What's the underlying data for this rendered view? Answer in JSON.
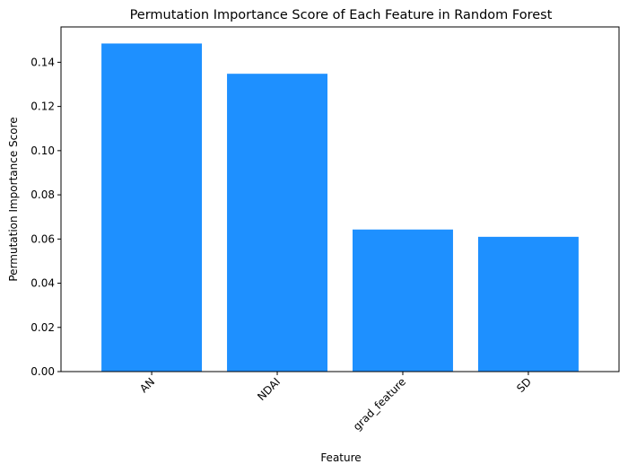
{
  "colors": {
    "bar": "#1e90ff",
    "axis": "#000000",
    "background": "#ffffff"
  },
  "chart_data": {
    "type": "bar",
    "title": "Permutation Importance Score of Each Feature in Random Forest",
    "xlabel": "Feature",
    "ylabel": "Permutation Importance Score",
    "categories": [
      "AN",
      "NDAI",
      "grad_feature",
      "SD"
    ],
    "values": [
      0.1485,
      0.1348,
      0.0643,
      0.061
    ],
    "ylim": [
      0,
      0.156
    ],
    "yticks": [
      0.0,
      0.02,
      0.04,
      0.06,
      0.08,
      0.1,
      0.12,
      0.14
    ],
    "ytick_labels": [
      "0.00",
      "0.02",
      "0.04",
      "0.06",
      "0.08",
      "0.10",
      "0.12",
      "0.14"
    ],
    "xtick_rotation": -45,
    "grid": false,
    "legend": "none"
  }
}
